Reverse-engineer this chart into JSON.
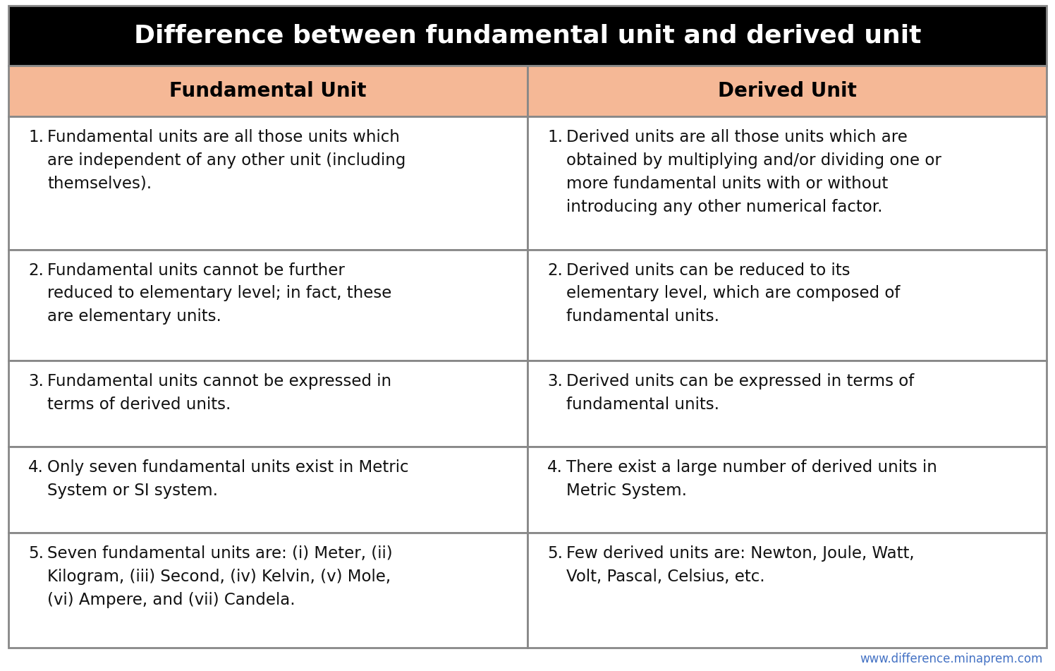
{
  "title": "Difference between fundamental unit and derived unit",
  "title_bg": "#000000",
  "title_color": "#ffffff",
  "header_bg": "#f5b896",
  "header_color": "#000000",
  "row_bg": "#ffffff",
  "border_color": "#888888",
  "col1_header": "Fundamental Unit",
  "col2_header": "Derived Unit",
  "col1_items": [
    [
      "1.",
      "Fundamental units are all those units which\nare independent of any other unit (including\nthemselves)."
    ],
    [
      "2.",
      "Fundamental units cannot be further\nreduced to elementary level; in fact, these\nare elementary units."
    ],
    [
      "3.",
      "Fundamental units cannot be expressed in\nterms of derived units."
    ],
    [
      "4.",
      "Only seven fundamental units exist in Metric\nSystem or SI system."
    ],
    [
      "5.",
      "Seven fundamental units are: (i) Meter, (ii)\nKilogram, (iii) Second, (iv) Kelvin, (v) Mole,\n(vi) Ampere, and (vii) Candela."
    ]
  ],
  "col2_items": [
    [
      "1.",
      "Derived units are all those units which are\nobtained by multiplying and/or dividing one or\nmore fundamental units with or without\nintroducing any other numerical factor."
    ],
    [
      "2.",
      "Derived units can be reduced to its\nelementary level, which are composed of\nfundamental units."
    ],
    [
      "3.",
      "Derived units can be expressed in terms of\nfundamental units."
    ],
    [
      "4.",
      "There exist a large number of derived units in\nMetric System."
    ],
    [
      "5.",
      "Few derived units are: Newton, Joule, Watt,\nVolt, Pascal, Celsius, etc."
    ]
  ],
  "watermark": "www.difference.minaprem.com",
  "watermark_color": "#4472c4",
  "fig_width": 14.96,
  "fig_height": 9.51,
  "title_fontsize": 26,
  "header_fontsize": 20,
  "body_fontsize": 16.5
}
